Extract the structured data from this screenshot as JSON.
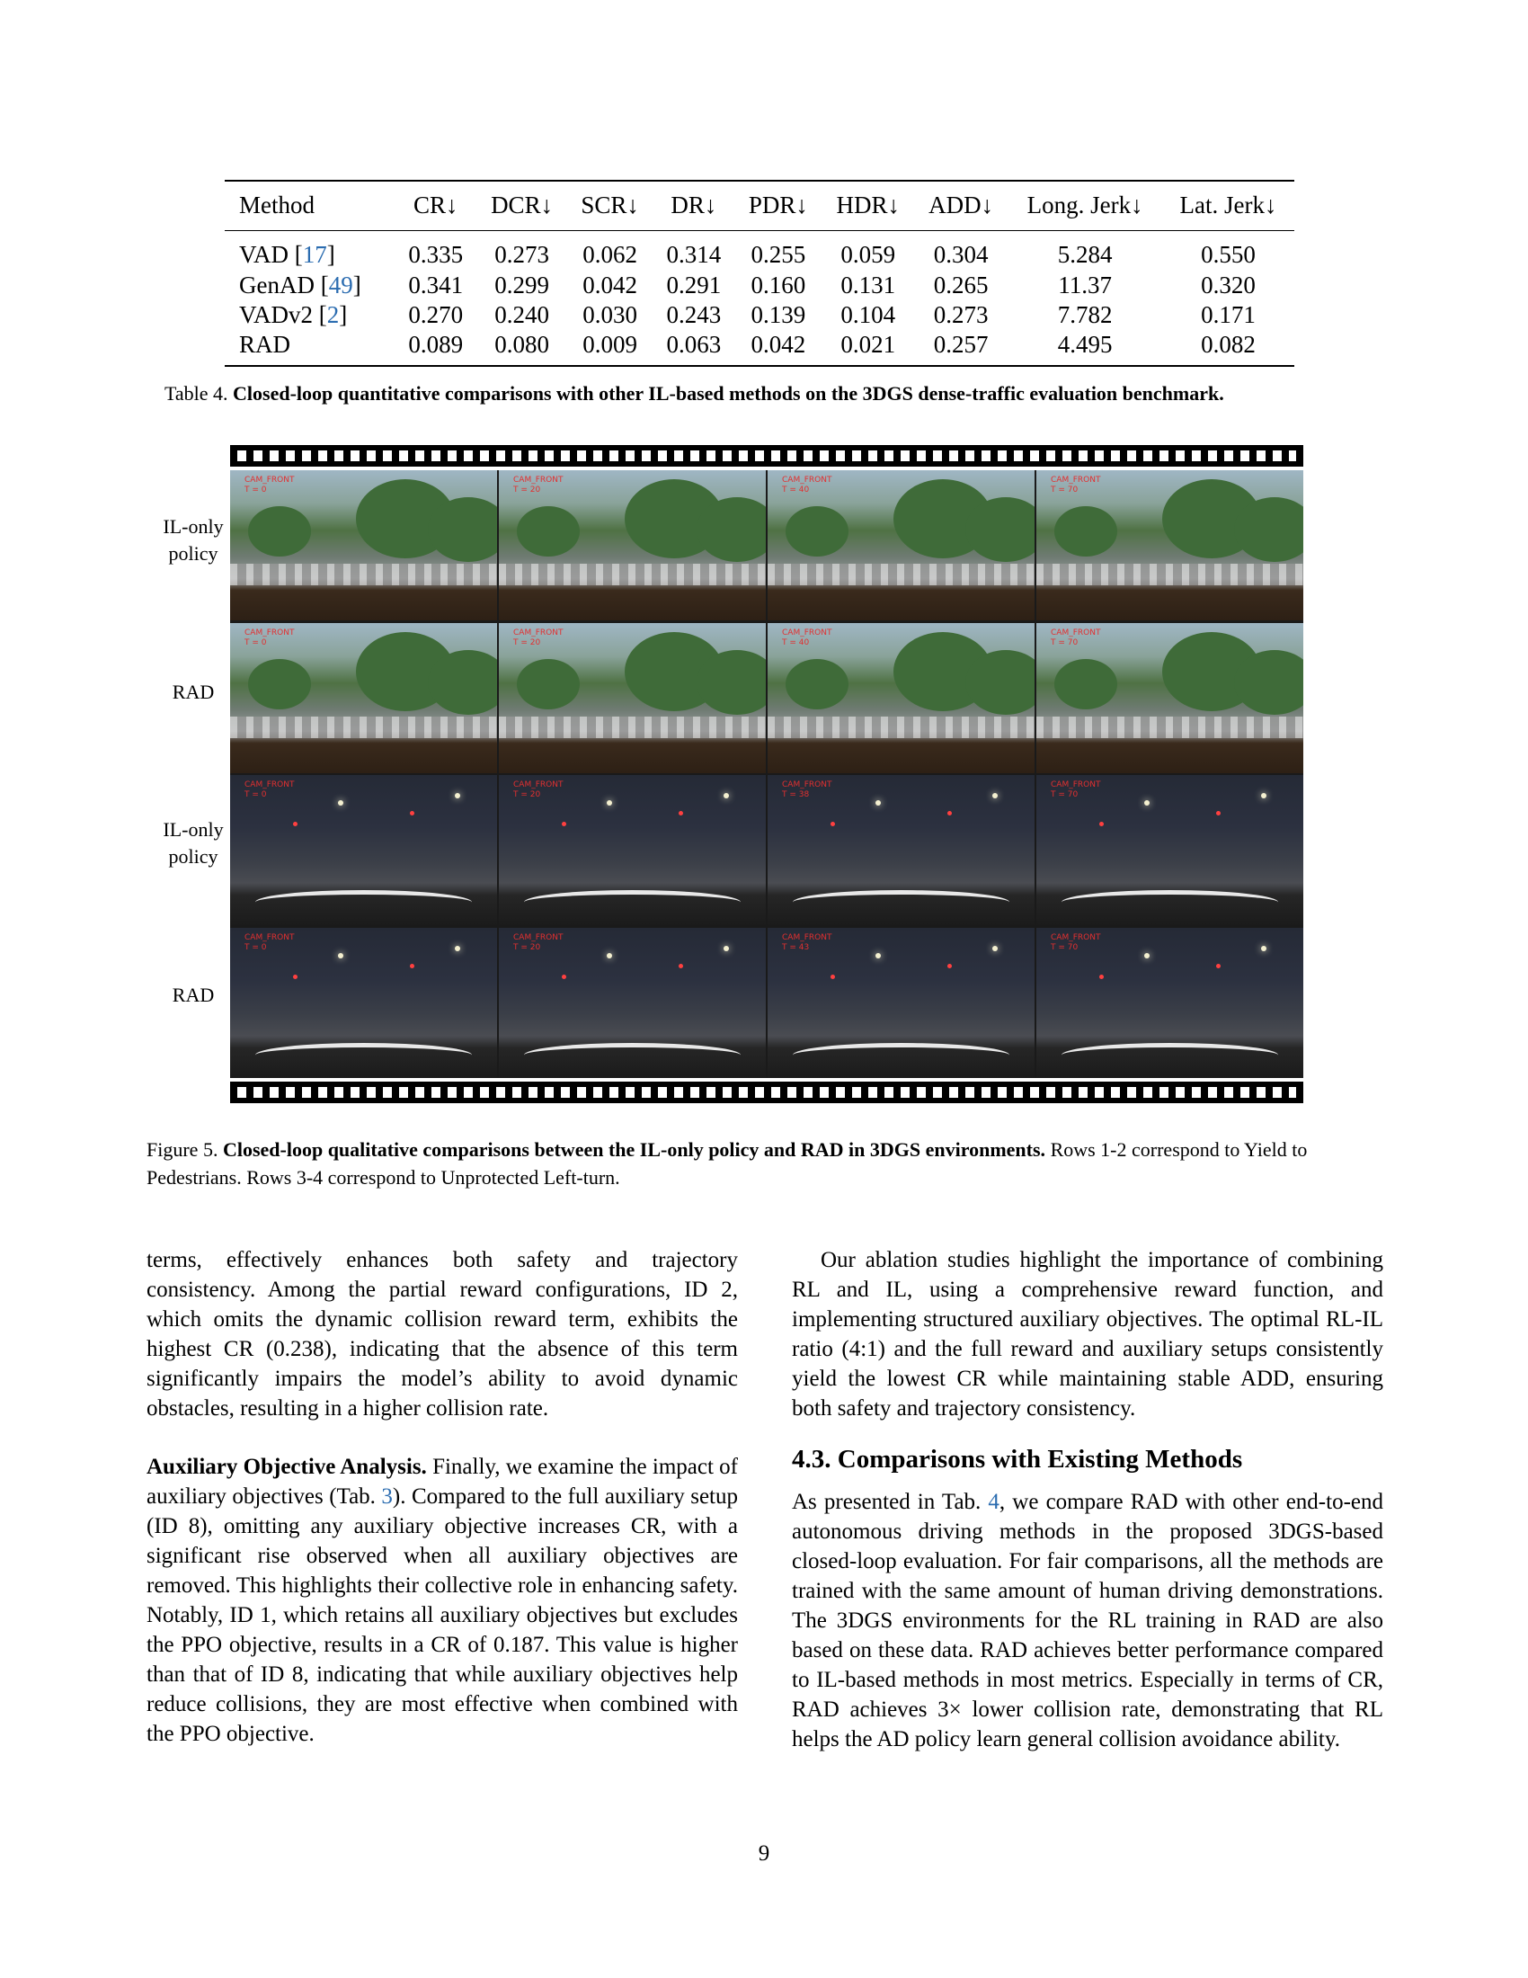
{
  "table4": {
    "headers": [
      "Method",
      "CR↓",
      "DCR↓",
      "SCR↓",
      "DR↓",
      "PDR↓",
      "HDR↓",
      "ADD↓",
      "Long. Jerk↓",
      "Lat. Jerk↓"
    ],
    "rows": [
      {
        "method": "VAD",
        "ref": "17",
        "values": [
          "0.335",
          "0.273",
          "0.062",
          "0.314",
          "0.255",
          "0.059",
          "0.304",
          "5.284",
          "0.550"
        ]
      },
      {
        "method": "GenAD",
        "ref": "49",
        "values": [
          "0.341",
          "0.299",
          "0.042",
          "0.291",
          "0.160",
          "0.131",
          "0.265",
          "11.37",
          "0.320"
        ]
      },
      {
        "method": "VADv2",
        "ref": "2",
        "values": [
          "0.270",
          "0.240",
          "0.030",
          "0.243",
          "0.139",
          "0.104",
          "0.273",
          "7.782",
          "0.171"
        ]
      },
      {
        "method": "RAD",
        "ref": "",
        "values": [
          "0.089",
          "0.080",
          "0.009",
          "0.063",
          "0.042",
          "0.021",
          "0.257",
          "4.495",
          "0.082"
        ]
      }
    ],
    "caption_label": "Table 4.",
    "caption_bold": "Closed-loop quantitative comparisons with other IL-based methods on the 3DGS dense-traffic evaluation benchmark."
  },
  "figure5": {
    "row_labels": [
      "IL-only\npolicy",
      "RAD",
      "IL-only\npolicy",
      "RAD"
    ],
    "cam_label": "CAM_FRONT",
    "rows": [
      {
        "scene": "day",
        "times": [
          "T = 0",
          "T = 20",
          "T = 40",
          "T = 70"
        ]
      },
      {
        "scene": "day",
        "times": [
          "T = 0",
          "T = 20",
          "T = 40",
          "T = 70"
        ]
      },
      {
        "scene": "night",
        "times": [
          "T = 0",
          "T = 20",
          "T = 38",
          "T = 70"
        ]
      },
      {
        "scene": "night",
        "times": [
          "T = 0",
          "T = 20",
          "T = 43",
          "T = 70"
        ]
      }
    ],
    "caption_label": "Figure 5.",
    "caption_bold": "Closed-loop qualitative comparisons between the IL-only policy and RAD in 3DGS environments.",
    "caption_rest": " Rows 1-2 correspond to Yield to Pedestrians. Rows 3-4 correspond to Unprotected Left-turn."
  },
  "left_column": {
    "para1": "terms, effectively enhances both safety and trajectory consistency. Among the partial reward configurations, ID 2, which omits the dynamic collision reward term, exhibits the highest CR (0.238), indicating that the absence of this term significantly impairs the model’s ability to avoid dynamic obstacles, resulting in a higher collision rate.",
    "para2_head": "Auxiliary Objective Analysis.",
    "para2_a": " Finally, we examine the impact of auxiliary objectives (Tab. ",
    "para2_ref": "3",
    "para2_b": "). Compared to the full auxiliary setup (ID 8), omitting any auxiliary objective increases CR, with a significant rise observed when all auxiliary objectives are removed. This highlights their collective role in enhancing safety. Notably, ID 1, which retains all auxiliary objectives but excludes the PPO objective, results in a CR of 0.187. This value is higher than that of ID 8, indicating that while auxiliary objectives help reduce collisions, they are most effective when combined with the PPO objective."
  },
  "right_column": {
    "para1": "Our ablation studies highlight the importance of combining RL and IL, using a comprehensive reward function, and implementing structured auxiliary objectives. The optimal RL-IL ratio (4:1) and the full reward and auxiliary setups consistently yield the lowest CR while maintaining stable ADD, ensuring both safety and trajectory consistency.",
    "section_title": "4.3. Comparisons with Existing Methods",
    "para2_a": "As presented in Tab. ",
    "para2_ref": "4",
    "para2_b": ", we compare RAD with other end-to-end autonomous driving methods in the proposed 3DGS-based closed-loop evaluation. For fair comparisons, all the methods are trained with the same amount of human driving demonstrations. The 3DGS environments for the RL training in RAD are also based on these data. RAD achieves better performance compared to IL-based methods in most metrics. Especially in terms of CR, RAD achieves 3× lower collision rate, demonstrating that RL helps the AD policy learn general collision avoidance ability."
  },
  "page_number": "9"
}
